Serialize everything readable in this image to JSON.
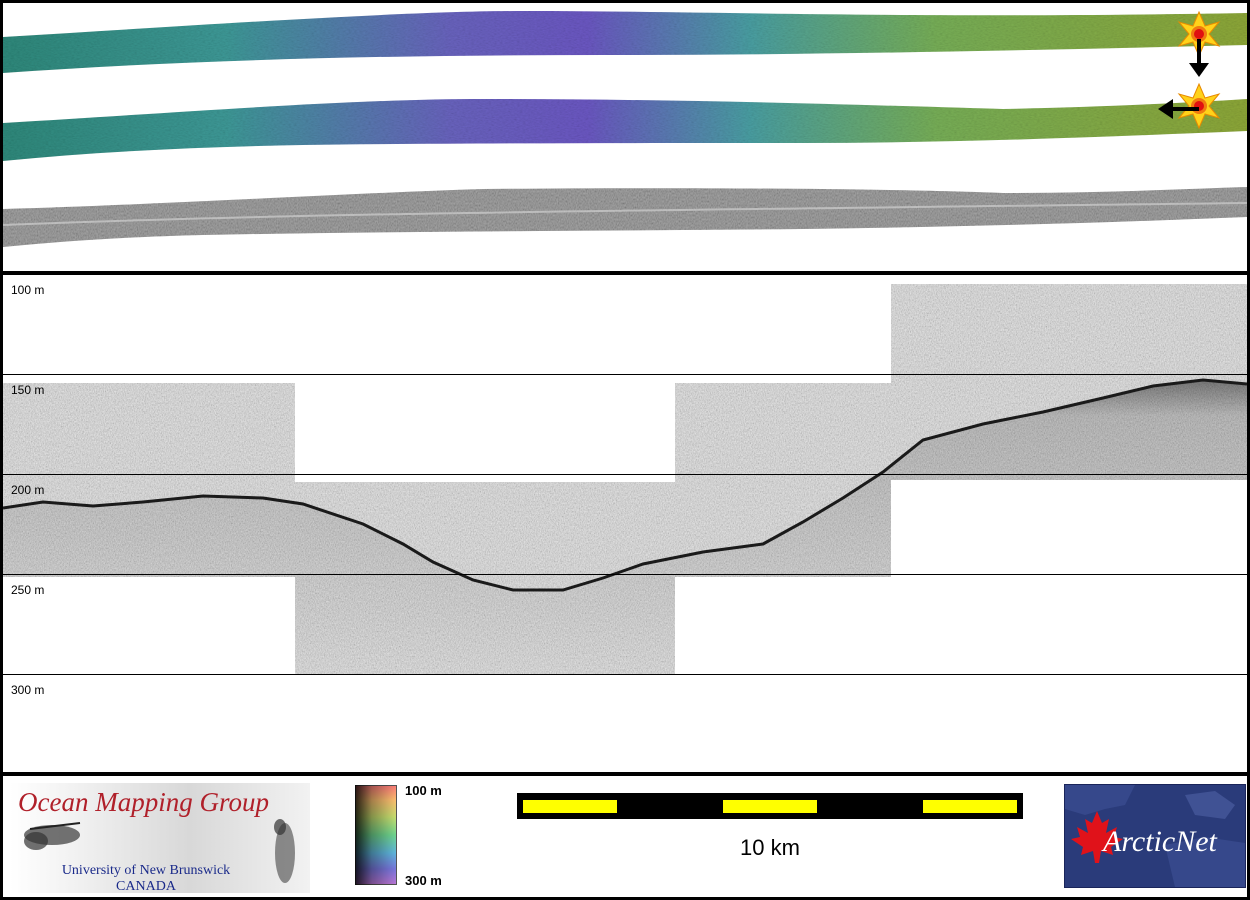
{
  "depth_labels": [
    "100 m",
    "150 m",
    "200 m",
    "250 m",
    "300 m"
  ],
  "colorbar": {
    "top_label": "100 m",
    "bottom_label": "300 m"
  },
  "scale_bar": {
    "label": "10 km"
  },
  "logos": {
    "omg_title": "Ocean Mapping Group",
    "omg_university": "University of New Brunswick",
    "omg_country": "CANADA",
    "arcticnet": "ArcticNet"
  },
  "icons": {
    "sun_top": "sun-illumination-icon",
    "arrow_down": "arrow-down-icon",
    "arrow_left": "arrow-left-icon",
    "maple_leaf": "maple-leaf-icon"
  },
  "colors": {
    "bathy_shallow": "#8aa838",
    "bathy_mid": "#3f9a90",
    "bathy_deep": "#6e58c0",
    "scale_yellow": "#ffff00",
    "omg_red": "#b0202a",
    "omg_blue": "#1a2a8a",
    "arctic_blue": "#2a3b7a"
  }
}
